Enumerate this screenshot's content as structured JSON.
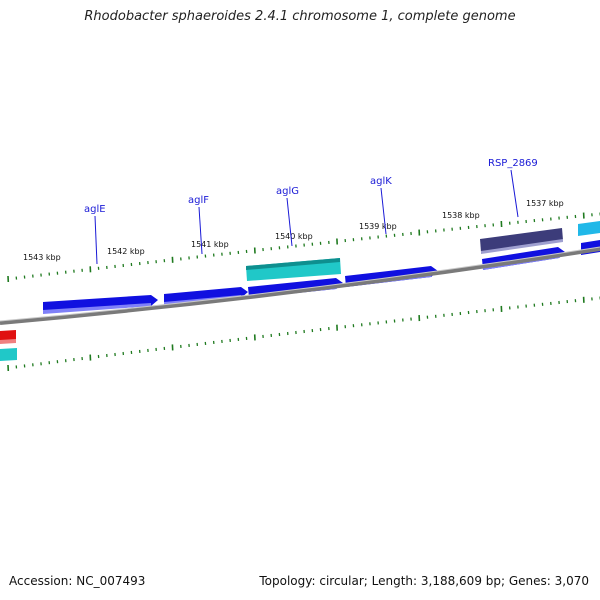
{
  "header": {
    "title": "Rhodobacter sphaeroides 2.4.1 chromosome 1, complete genome"
  },
  "footer": {
    "accession": "Accession: NC_007493",
    "stats": "Topology: circular; Length: 3,188,609 bp; Genes: 3,070"
  },
  "colors": {
    "backbone": "#808080",
    "tick": "#1f7a1f",
    "gene_blue": "#1010e0",
    "gene_teal": "#20c8c8",
    "gene_purple": "#3c3c7a",
    "gene_red": "#e01010",
    "gene_lightblue": "#20b8e8",
    "label_blue": "#1a1ad6"
  },
  "map": {
    "kbp_ticks": [
      "1543 kbp",
      "1542 kbp",
      "1541 kbp",
      "1540 kbp",
      "1539 kbp",
      "1538 kbp",
      "1537 kbp"
    ],
    "gene_labels": [
      "aglE",
      "aglF",
      "aglG",
      "aglK",
      "RSP_2869"
    ]
  }
}
